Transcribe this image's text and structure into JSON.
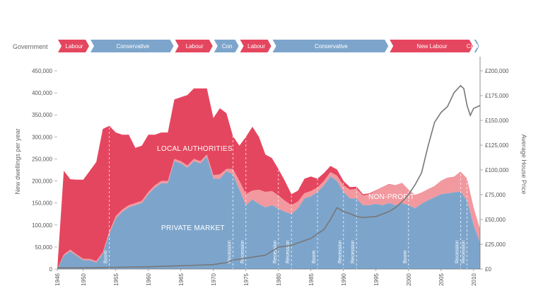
{
  "chart_data": {
    "type": "area",
    "government_label": "Government",
    "x_range": [
      1946,
      2011
    ],
    "y_left": {
      "label": "New dwellings per year",
      "range": [
        0,
        450000
      ],
      "ticks": [
        0,
        50000,
        100000,
        150000,
        200000,
        250000,
        300000,
        350000,
        400000,
        450000
      ],
      "tick_labels": [
        "0",
        "50,000",
        "100,000",
        "150,000",
        "200,000",
        "250,000",
        "300,000",
        "350,000",
        "400,000",
        "450,000"
      ]
    },
    "y_right": {
      "label": "Average House Price",
      "range": [
        0,
        200000
      ],
      "ticks": [
        0,
        25000,
        50000,
        75000,
        100000,
        125000,
        150000,
        175000,
        200000
      ],
      "tick_labels": [
        "£0",
        "£25,000",
        "£50,000",
        "£75,000",
        "£100,000",
        "£125,000",
        "£150,000",
        "£175,000",
        "£200,000"
      ]
    },
    "x_ticks": [
      1946,
      1950,
      1955,
      1960,
      1965,
      1970,
      1975,
      1980,
      1985,
      1990,
      1995,
      2000,
      2005,
      2010
    ],
    "x_tick_labels": [
      "1946",
      "1950",
      "1955",
      "1960",
      "1965",
      "1970",
      "1975",
      "1980",
      "1985",
      "1990",
      "1995",
      "2000",
      "2005",
      "2010"
    ],
    "governments": [
      {
        "name": "Labour",
        "start": 1946,
        "end": 1951,
        "party": "labour"
      },
      {
        "name": "Conservative",
        "start": 1951,
        "end": 1964,
        "party": "conservative"
      },
      {
        "name": "Labour",
        "start": 1964,
        "end": 1970,
        "party": "labour"
      },
      {
        "name": "Con",
        "start": 1970,
        "end": 1974,
        "party": "conservative"
      },
      {
        "name": "Labour",
        "start": 1974,
        "end": 1979,
        "party": "labour"
      },
      {
        "name": "Conservative",
        "start": 1979,
        "end": 1997,
        "party": "conservative"
      },
      {
        "name": "New Labour",
        "start": 1997,
        "end": 2010,
        "party": "labour"
      },
      {
        "name": "Coalition",
        "start": 2010,
        "end": 2011,
        "party": "conservative"
      }
    ],
    "events": [
      {
        "label": "Boom",
        "year": 1954
      },
      {
        "label": "Recession",
        "year": 1973
      },
      {
        "label": "Recession",
        "year": 1975
      },
      {
        "label": "Recession",
        "year": 1980
      },
      {
        "label": "Recession",
        "year": 1982
      },
      {
        "label": "Boom",
        "year": 1986
      },
      {
        "label": "Recession",
        "year": 1990
      },
      {
        "label": "Recession",
        "year": 1992
      },
      {
        "label": "Boom",
        "year": 2000
      },
      {
        "label": "Recession",
        "year": 2008
      },
      {
        "label": "Recession",
        "year": 2009
      }
    ],
    "area_labels": {
      "local": "LOCAL AUTHORITIES",
      "nonprofit": "NON-PROFIT",
      "private": "PRIVATE MARKET"
    },
    "series": [
      {
        "name": "Private market",
        "x": [
          1946,
          1947,
          1948,
          1949,
          1950,
          1951,
          1952,
          1953,
          1954,
          1955,
          1956,
          1957,
          1958,
          1959,
          1960,
          1961,
          1962,
          1963,
          1964,
          1965,
          1966,
          1967,
          1968,
          1969,
          1970,
          1971,
          1972,
          1973,
          1974,
          1975,
          1976,
          1977,
          1978,
          1979,
          1980,
          1981,
          1982,
          1983,
          1984,
          1985,
          1986,
          1987,
          1988,
          1989,
          1990,
          1991,
          1992,
          1993,
          1994,
          1995,
          1996,
          1997,
          1998,
          1999,
          2000,
          2001,
          2002,
          2003,
          2004,
          2005,
          2006,
          2007,
          2008,
          2009,
          2010,
          2011
        ],
        "values": [
          0,
          30000,
          40000,
          30000,
          20000,
          20000,
          15000,
          35000,
          80000,
          115000,
          130000,
          140000,
          145000,
          150000,
          170000,
          185000,
          195000,
          195000,
          245000,
          240000,
          230000,
          245000,
          240000,
          255000,
          205000,
          205000,
          222000,
          215000,
          180000,
          145000,
          158000,
          148000,
          140000,
          145000,
          137000,
          130000,
          125000,
          138000,
          160000,
          165000,
          175000,
          190000,
          210000,
          200000,
          175000,
          160000,
          160000,
          145000,
          145000,
          148000,
          145000,
          150000,
          145000,
          150000,
          145000,
          138000,
          148000,
          156000,
          163000,
          170000,
          172000,
          174000,
          176000,
          155000,
          100000,
          60000
        ]
      },
      {
        "name": "Non-profit",
        "x": [
          1946,
          1947,
          1948,
          1949,
          1950,
          1951,
          1952,
          1953,
          1954,
          1955,
          1956,
          1957,
          1958,
          1959,
          1960,
          1961,
          1962,
          1963,
          1964,
          1965,
          1966,
          1967,
          1968,
          1969,
          1970,
          1971,
          1972,
          1973,
          1974,
          1975,
          1976,
          1977,
          1978,
          1979,
          1980,
          1981,
          1982,
          1983,
          1984,
          1985,
          1986,
          1987,
          1988,
          1989,
          1990,
          1991,
          1992,
          1993,
          1994,
          1995,
          1996,
          1997,
          1998,
          1999,
          2000,
          2001,
          2002,
          2003,
          2004,
          2005,
          2006,
          2007,
          2008,
          2009,
          2010,
          2011
        ],
        "values": [
          0,
          3000,
          4000,
          3000,
          3000,
          3000,
          3000,
          3000,
          5000,
          5000,
          5000,
          5000,
          5000,
          5000,
          5000,
          5000,
          5000,
          5000,
          5000,
          5000,
          5000,
          5000,
          5000,
          5000,
          8000,
          10000,
          5000,
          12000,
          20000,
          25000,
          20000,
          32000,
          35000,
          32000,
          30000,
          25000,
          20000,
          15000,
          12000,
          12000,
          10000,
          10000,
          10000,
          12000,
          15000,
          20000,
          22000,
          22000,
          25000,
          30000,
          40000,
          42000,
          45000,
          45000,
          35000,
          30000,
          25000,
          25000,
          25000,
          30000,
          35000,
          35000,
          45000,
          50000,
          40000,
          30000
        ]
      },
      {
        "name": "Local authorities",
        "x": [
          1946,
          1947,
          1948,
          1949,
          1950,
          1951,
          1952,
          1953,
          1954,
          1955,
          1956,
          1957,
          1958,
          1959,
          1960,
          1961,
          1962,
          1963,
          1964,
          1965,
          1966,
          1967,
          1968,
          1969,
          1970,
          1971,
          1972,
          1973,
          1974,
          1975,
          1976,
          1977,
          1978,
          1979,
          1980,
          1981,
          1982,
          1983,
          1984,
          1985,
          1986,
          1987,
          1988,
          1989,
          1990,
          1991,
          1992,
          1993,
          1994,
          1995,
          1996,
          1997,
          1998,
          1999,
          2000,
          2001,
          2002,
          2003,
          2004,
          2005,
          2006,
          2007,
          2008,
          2009,
          2010,
          2011
        ],
        "values": [
          0,
          190000,
          160000,
          170000,
          180000,
          200000,
          225000,
          280000,
          240000,
          190000,
          170000,
          160000,
          125000,
          125000,
          130000,
          115000,
          110000,
          110000,
          135000,
          145000,
          160000,
          160000,
          165000,
          150000,
          130000,
          150000,
          127000,
          75000,
          80000,
          130000,
          145000,
          120000,
          85000,
          75000,
          60000,
          45000,
          25000,
          25000,
          33000,
          33000,
          20000,
          18000,
          14000,
          14000,
          10000,
          6000,
          5000,
          3000,
          2000,
          1000,
          1000,
          1000,
          500,
          500,
          500,
          500,
          500,
          500,
          500,
          500,
          500,
          500,
          500,
          500,
          500,
          500
        ]
      },
      {
        "name": "Average house price",
        "axis": "right",
        "x": [
          1946,
          1950,
          1955,
          1960,
          1963,
          1966,
          1970,
          1972,
          1973,
          1975,
          1978,
          1980,
          1982,
          1985,
          1987,
          1988,
          1989,
          1990,
          1991,
          1992,
          1993,
          1995,
          1997,
          1998,
          1999,
          2000,
          2001,
          2002,
          2003,
          2004,
          2005,
          2006,
          2007,
          2008,
          2008.5,
          2009,
          2009.5,
          2010,
          2011
        ],
        "values": [
          1200,
          1300,
          1800,
          2300,
          3000,
          3600,
          4500,
          6500,
          9000,
          11000,
          14000,
          22000,
          24000,
          31000,
          40000,
          50000,
          62000,
          58000,
          56000,
          53000,
          52000,
          53000,
          58000,
          62000,
          68000,
          75000,
          85000,
          97000,
          124000,
          148000,
          158000,
          164000,
          178000,
          185000,
          182000,
          165000,
          155000,
          162000,
          165000
        ]
      }
    ],
    "colors": {
      "local": "#e5465f",
      "nonprofit": "#f2999f",
      "private": "#7da5cc",
      "labour": "#e5465f",
      "conservative": "#7da5cc",
      "price_line": "#777777"
    }
  }
}
